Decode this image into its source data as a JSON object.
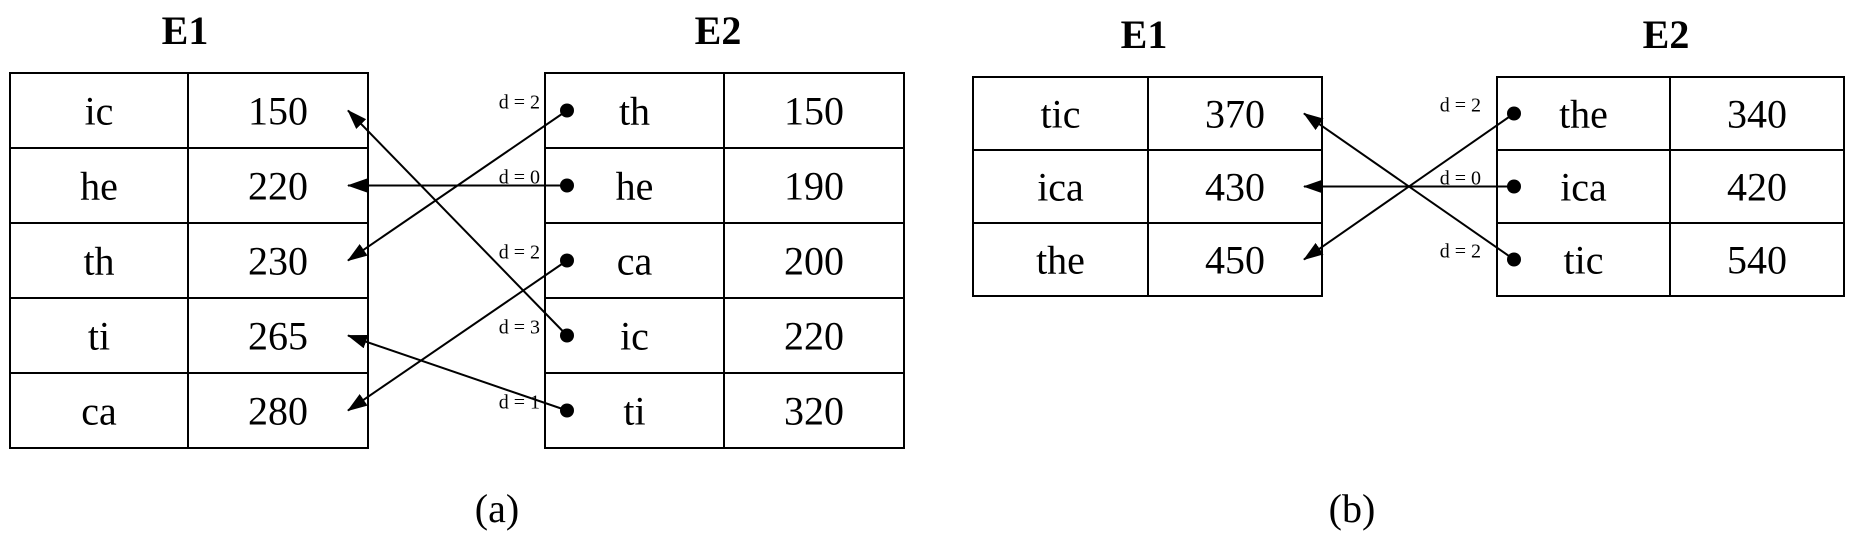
{
  "panel_a": {
    "caption": "(a)",
    "left_table": {
      "title": "E1",
      "rows": [
        [
          "ic",
          "150"
        ],
        [
          "he",
          "220"
        ],
        [
          "th",
          "230"
        ],
        [
          "ti",
          "265"
        ],
        [
          "ca",
          "280"
        ]
      ]
    },
    "right_table": {
      "title": "E2",
      "rows": [
        [
          "th",
          "150"
        ],
        [
          "he",
          "190"
        ],
        [
          "ca",
          "200"
        ],
        [
          "ic",
          "220"
        ],
        [
          "ti",
          "320"
        ]
      ]
    },
    "links": [
      {
        "from": 0,
        "to": 2,
        "d": "d = 2"
      },
      {
        "from": 1,
        "to": 1,
        "d": "d = 0"
      },
      {
        "from": 2,
        "to": 4,
        "d": "d = 2"
      },
      {
        "from": 3,
        "to": 0,
        "d": "d = 3"
      },
      {
        "from": 4,
        "to": 3,
        "d": "d = 1"
      }
    ]
  },
  "panel_b": {
    "caption": "(b)",
    "left_table": {
      "title": "E1",
      "rows": [
        [
          "tic",
          "370"
        ],
        [
          "ica",
          "430"
        ],
        [
          "the",
          "450"
        ]
      ]
    },
    "right_table": {
      "title": "E2",
      "rows": [
        [
          "the",
          "340"
        ],
        [
          "ica",
          "420"
        ],
        [
          "tic",
          "540"
        ]
      ]
    },
    "links": [
      {
        "from": 0,
        "to": 2,
        "d": "d = 2"
      },
      {
        "from": 1,
        "to": 1,
        "d": "d = 0"
      },
      {
        "from": 2,
        "to": 0,
        "d": "d = 2"
      }
    ]
  }
}
